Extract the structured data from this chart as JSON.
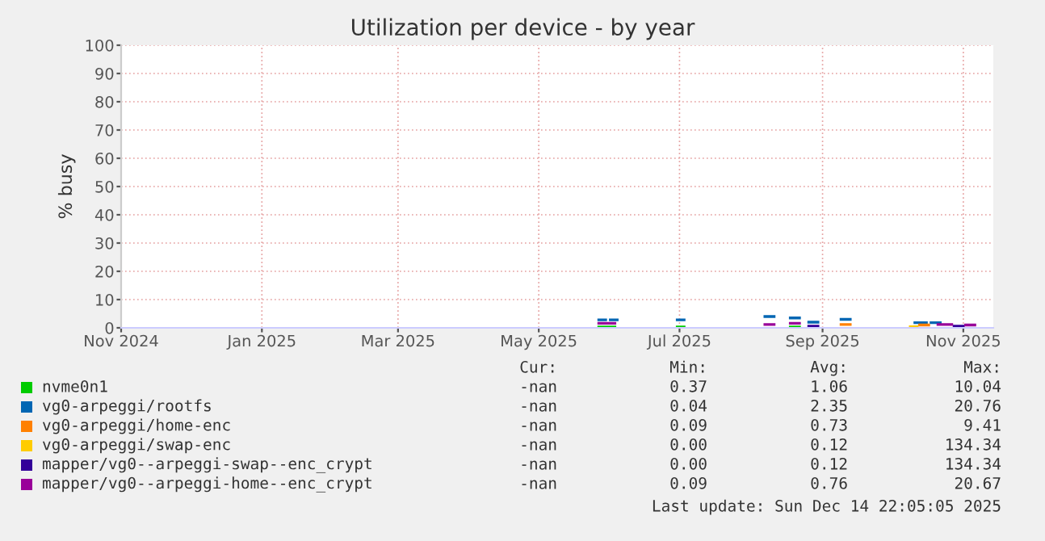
{
  "chart_data": {
    "type": "line",
    "title": "Utilization per device - by year",
    "ylabel": "% busy",
    "xlim": [
      "2024-11-01",
      "2025-11-14"
    ],
    "ylim": [
      0,
      100
    ],
    "yticks": [
      0,
      10,
      20,
      30,
      40,
      50,
      60,
      70,
      80,
      90,
      100
    ],
    "xticks": [
      {
        "value": "2024-11-01",
        "label": "Nov 2024"
      },
      {
        "value": "2025-01-01",
        "label": "Jan 2025"
      },
      {
        "value": "2025-03-01",
        "label": "Mar 2025"
      },
      {
        "value": "2025-05-01",
        "label": "May 2025"
      },
      {
        "value": "2025-07-01",
        "label": "Jul 2025"
      },
      {
        "value": "2025-09-01",
        "label": "Sep 2025"
      },
      {
        "value": "2025-11-01",
        "label": "Nov 2025"
      }
    ],
    "grid": true,
    "legend": "bottom",
    "marker": "none",
    "line_style": "solid",
    "series": [
      {
        "name": "nvme0n1",
        "color": "#00cc00",
        "x": [
          "2025-05-27",
          "2025-06-03",
          "2025-06-04",
          "2025-06-30",
          "2025-07-03",
          "2025-07-04",
          "2025-08-18",
          "2025-08-22"
        ],
        "values": [
          0.3,
          0.3,
          null,
          0.3,
          0.3,
          null,
          0.3,
          0.3
        ]
      },
      {
        "name": "vg0-arpeggi/rootfs",
        "color": "#0066b3",
        "x": [
          "2025-05-27",
          "2025-05-30",
          "2025-05-31",
          "2025-06-01",
          "2025-06-04",
          "2025-06-05",
          "2025-06-30",
          "2025-07-03",
          "2025-07-04",
          "2025-08-07",
          "2025-08-11",
          "2025-08-12",
          "2025-08-18",
          "2025-08-22",
          "2025-08-23",
          "2025-08-26",
          "2025-08-30",
          "2025-08-31",
          "2025-09-09",
          "2025-09-13",
          "2025-09-14",
          "2025-10-11",
          "2025-10-16",
          "2025-10-17",
          "2025-10-18",
          "2025-10-22"
        ],
        "values": [
          2.8,
          2.8,
          null,
          2.8,
          2.8,
          null,
          2.8,
          2.8,
          null,
          4,
          4,
          null,
          3.5,
          3.5,
          null,
          2,
          2,
          null,
          3,
          3,
          null,
          1.8,
          1.8,
          null,
          1.8,
          1.8
        ]
      },
      {
        "name": "vg0-arpeggi/home-enc",
        "color": "#ff8000",
        "x": [
          "2025-09-09",
          "2025-09-13",
          "2025-09-14",
          "2025-10-13",
          "2025-10-17"
        ],
        "values": [
          1.2,
          1.2,
          null,
          1,
          1
        ]
      },
      {
        "name": "vg0-arpeggi/swap-enc",
        "color": "#ffcc00",
        "x": [
          "2025-10-09",
          "2025-10-12"
        ],
        "values": [
          0.4,
          0.4
        ]
      },
      {
        "name": "mapper/vg0--arpeggi-swap--enc_crypt",
        "color": "#330099",
        "x": [
          "2025-08-26",
          "2025-08-30",
          "2025-08-31",
          "2025-10-28",
          "2025-11-01"
        ],
        "values": [
          0.6,
          0.6,
          null,
          0.6,
          0.6
        ]
      },
      {
        "name": "mapper/vg0--arpeggi-home--enc_crypt",
        "color": "#990099",
        "x": [
          "2025-05-27",
          "2025-06-03",
          "2025-06-04",
          "2025-08-07",
          "2025-08-11",
          "2025-08-12",
          "2025-08-18",
          "2025-08-22",
          "2025-08-23",
          "2025-10-21",
          "2025-10-27",
          "2025-10-28",
          "2025-11-02",
          "2025-11-06"
        ],
        "values": [
          1.6,
          1.6,
          null,
          1.2,
          1.2,
          null,
          1.6,
          1.6,
          null,
          1.2,
          1.2,
          null,
          1,
          1
        ]
      }
    ],
    "annotations": [
      "Cur:",
      "Min:",
      "Avg:",
      "Max:",
      "-nan",
      "0.37",
      "1.06",
      "10.04",
      "-nan",
      "0.04",
      "2.35",
      "20.76",
      "-nan",
      "0.09",
      "0.73",
      "9.41",
      "-nan",
      "0.00",
      "0.12",
      "134.34",
      "-nan",
      "0.00",
      "0.12",
      "134.34",
      "-nan",
      "0.09",
      "0.76",
      "20.67",
      "Last update: Sun Dec 14 22:05:05 2025"
    ]
  }
}
